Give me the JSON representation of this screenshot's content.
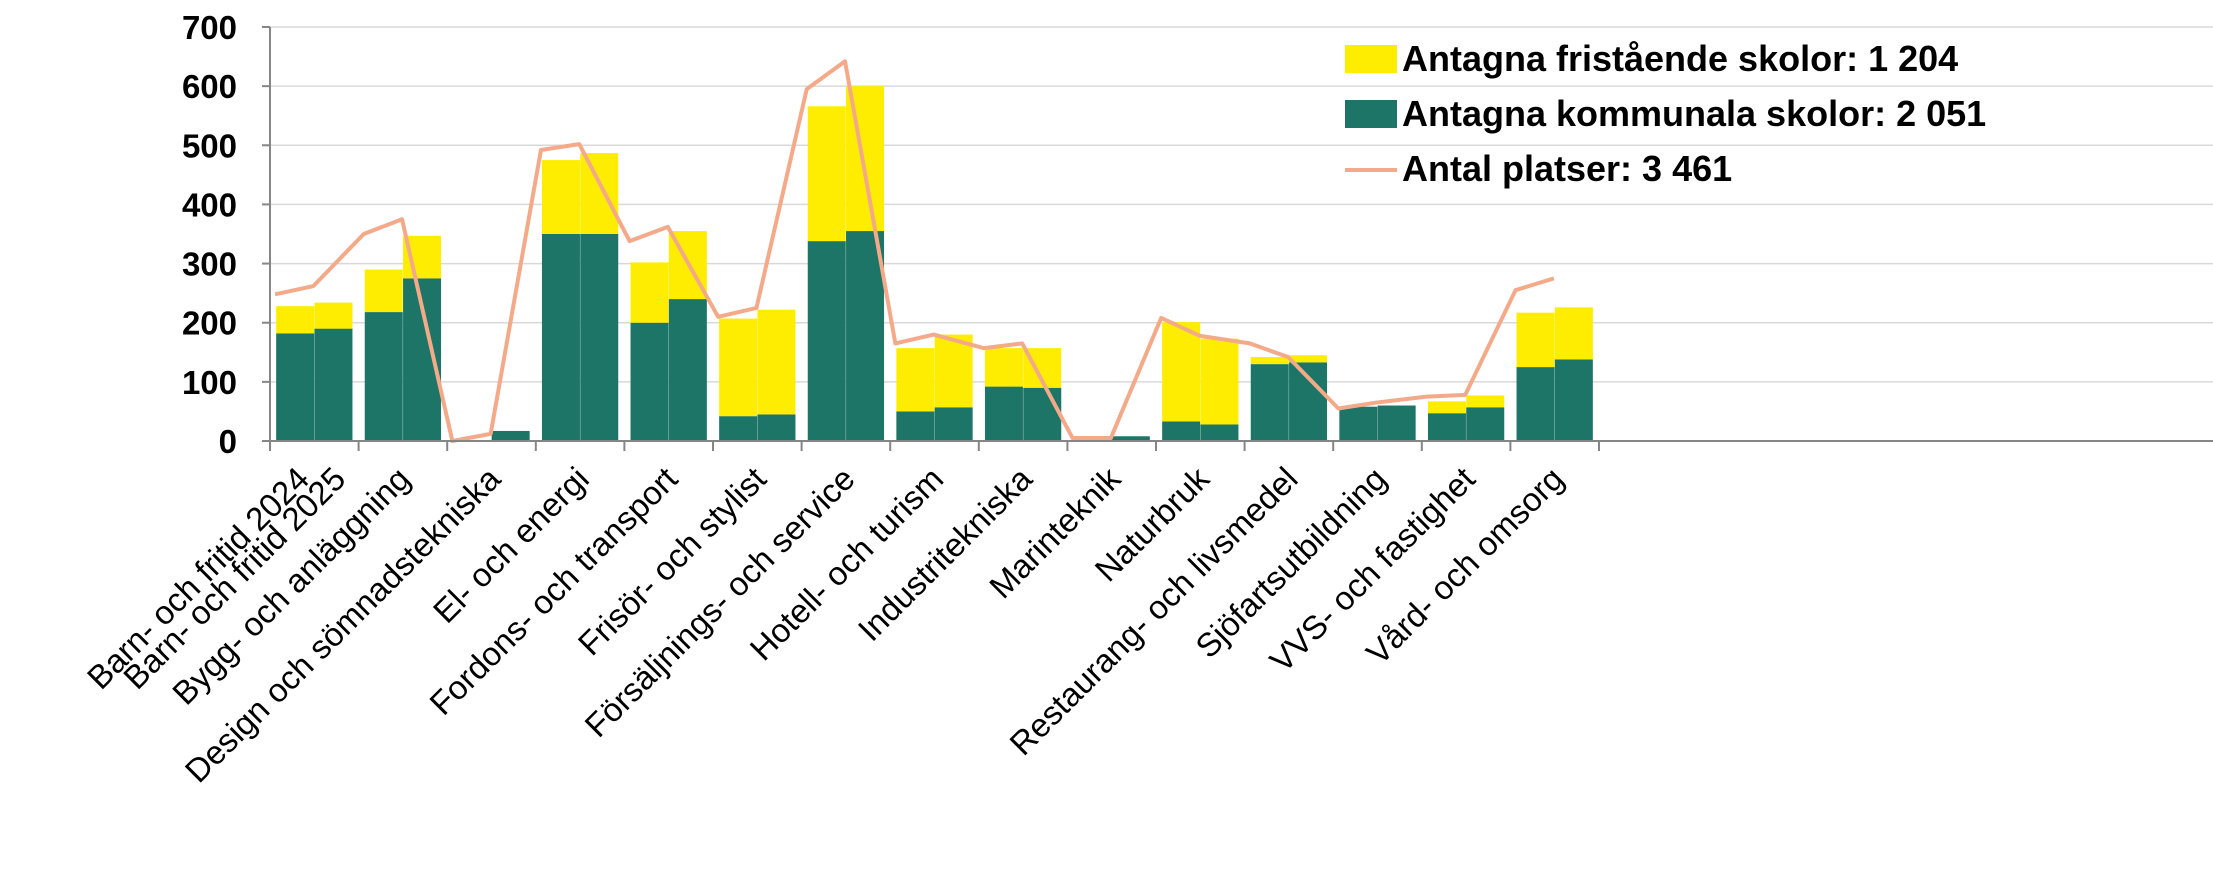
{
  "chart_data": {
    "type": "bar",
    "stacked": true,
    "title": "",
    "xlabel": "",
    "ylabel": "",
    "ylim": [
      0,
      700
    ],
    "yticks": [
      0,
      100,
      200,
      300,
      400,
      500,
      600,
      700
    ],
    "grid": true,
    "legend_position": "top-right",
    "categories": [
      "Barn- och fritid 2024",
      "Barn- och fritid 2025",
      "Bygg- och anläggning",
      "",
      "Design och sömnadstekniska",
      "",
      "El- och energi",
      "",
      "Fordons- och transport",
      "",
      "Frisör- och stylist",
      "",
      "Försäljnings- och service",
      "",
      "Hotell- och turism",
      "",
      "Industritekniska",
      "",
      "Marinteknik",
      "",
      "Naturbruk",
      "",
      "Restaurang- och livsmedel",
      "",
      "Sjöfartsutbildning",
      "",
      "VVS- och fastighet",
      "",
      "Vård- och omsorg",
      ""
    ],
    "series": [
      {
        "name": "Antagna kommunala skolor: 2 051",
        "kind": "bar",
        "color": "#1c7566",
        "values": [
          182,
          190,
          218,
          275,
          0,
          17,
          350,
          350,
          200,
          240,
          42,
          45,
          338,
          355,
          50,
          57,
          92,
          90,
          8,
          8,
          33,
          28,
          130,
          133,
          58,
          60,
          47,
          57,
          125,
          138
        ]
      },
      {
        "name": "Antagna fristående skolor: 1 204",
        "kind": "bar",
        "color": "#ffed00",
        "values": [
          46,
          44,
          72,
          72,
          0,
          0,
          125,
          137,
          102,
          115,
          165,
          177,
          228,
          245,
          107,
          123,
          65,
          67,
          0,
          0,
          168,
          145,
          12,
          12,
          0,
          0,
          20,
          20,
          92,
          88
        ]
      },
      {
        "name": "Antal platser: 3 461",
        "kind": "line",
        "color": "#f4a989",
        "values": [
          248,
          262,
          350,
          375,
          0,
          12,
          492,
          502,
          338,
          362,
          210,
          225,
          595,
          642,
          165,
          180,
          157,
          165,
          5,
          5,
          208,
          178,
          165,
          142,
          55,
          65,
          75,
          78,
          255,
          275
        ]
      }
    ]
  }
}
